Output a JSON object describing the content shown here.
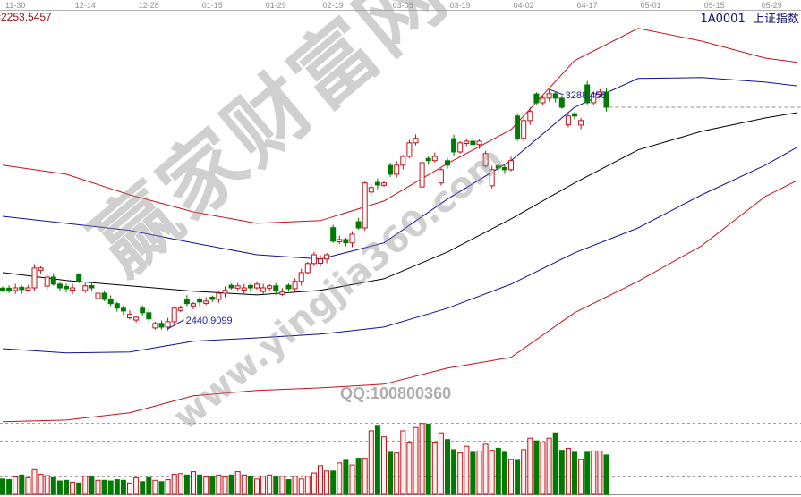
{
  "header": {
    "indicator_value": "=2253.5457",
    "security_code": "1A0001",
    "security_name": "上证指数"
  },
  "watermark": {
    "main": "赢家财富网",
    "url": "www.yingjia360.com",
    "qq": "QQ:100800360"
  },
  "colors": {
    "up": "#c0101a",
    "down": "#007a00",
    "upper_band": "#c8101a",
    "middle_band": "#10109a",
    "lower_band_outer": "#c8101a",
    "lower_band_inner": "#10109a",
    "moving_average": "#000000",
    "axis_text": "#909090"
  },
  "chart_data": [
    {
      "type": "candlestick",
      "title": "",
      "x_ticks": [
        {
          "index": 2,
          "label": "11-30"
        },
        {
          "index": 13,
          "label": "12-14"
        },
        {
          "index": 23,
          "label": "12-28"
        },
        {
          "index": 33,
          "label": "01-15"
        },
        {
          "index": 43,
          "label": "01-29"
        },
        {
          "index": 52,
          "label": "02-19"
        },
        {
          "index": 63,
          "label": "03-05"
        },
        {
          "index": 72,
          "label": "03-19"
        },
        {
          "index": 82,
          "label": "04-02"
        },
        {
          "index": 92,
          "label": "04-17"
        },
        {
          "index": 102,
          "label": "05-01"
        },
        {
          "index": 112,
          "label": "05-15"
        },
        {
          "index": 121,
          "label": "05-29"
        }
      ],
      "ylim": [
        2102,
        3535
      ],
      "close": [
        2577,
        2577,
        2586,
        2580,
        2586,
        2656,
        2656,
        2624,
        2599,
        2586,
        2583,
        2586,
        2609,
        2593,
        2586,
        2567,
        2545,
        2530,
        2514,
        2504,
        2492,
        2482,
        2498,
        2476,
        2460,
        2447,
        2466,
        2514,
        2514,
        2530,
        2530,
        2536,
        2539,
        2545,
        2567,
        2577,
        2586,
        2593,
        2586,
        2586,
        2599,
        2586,
        2593,
        2577,
        2571,
        2583,
        2609,
        2640,
        2672,
        2703,
        2688,
        2703,
        2751,
        2757,
        2745,
        2776,
        2798,
        2957,
        2941,
        2950,
        2957,
        2988,
        3020,
        3051,
        3099,
        3115,
        3029,
        3036,
        3051,
        3004,
        3020,
        3067,
        3099,
        3105,
        3093,
        3105,
        3061,
        3004,
        3010,
        3004,
        3036,
        3115,
        3178,
        3210,
        3241,
        3257,
        3273,
        3257,
        3225,
        3194,
        3194,
        3178,
        3241,
        3273,
        3279,
        3225
      ],
      "direction": "ggrgrrrrgggrgrgrggggrrggrgrrrgrgrgrrgrrgrrrgrgrrrrrrgrgrgrrgrgrrrrrgrrggrrgrrrggrgrrgrrggrgrgrrg",
      "annotations": [
        {
          "label": "3288.450",
          "index": 86,
          "value": 3288.45,
          "kind": "high"
        },
        {
          "label": "2440.9099",
          "index": 26,
          "value": 2440.9099,
          "kind": "low"
        }
      ],
      "last_close_line": 3225,
      "lines": [
        {
          "role": "upper_band",
          "points": [
            [
              0,
              3020
            ],
            [
              10,
              2988
            ],
            [
              20,
              2915
            ],
            [
              30,
              2855
            ],
            [
              40,
              2814
            ],
            [
              50,
              2824
            ],
            [
              60,
              2893
            ],
            [
              70,
              3026
            ],
            [
              80,
              3146
            ],
            [
              90,
              3390
            ],
            [
              100,
              3504
            ],
            [
              110,
              3459
            ],
            [
              120,
              3399
            ],
            [
              125,
              3384
            ]
          ]
        },
        {
          "role": "middle_band",
          "points": [
            [
              0,
              2839
            ],
            [
              10,
              2814
            ],
            [
              20,
              2789
            ],
            [
              30,
              2745
            ],
            [
              40,
              2703
            ],
            [
              50,
              2688
            ],
            [
              60,
              2745
            ],
            [
              70,
              2900
            ],
            [
              80,
              3036
            ],
            [
              90,
              3225
            ],
            [
              100,
              3327
            ],
            [
              110,
              3330
            ],
            [
              120,
              3314
            ],
            [
              125,
              3301
            ]
          ]
        },
        {
          "role": "moving_average",
          "points": [
            [
              0,
              2640
            ],
            [
              10,
              2612
            ],
            [
              20,
              2593
            ],
            [
              30,
              2574
            ],
            [
              40,
              2561
            ],
            [
              50,
              2577
            ],
            [
              60,
              2618
            ],
            [
              70,
              2713
            ],
            [
              80,
              2830
            ],
            [
              90,
              2957
            ],
            [
              100,
              3074
            ],
            [
              110,
              3140
            ],
            [
              120,
              3187
            ],
            [
              125,
              3206
            ]
          ]
        },
        {
          "role": "lower_band_inner",
          "points": [
            [
              0,
              2371
            ],
            [
              10,
              2356
            ],
            [
              20,
              2359
            ],
            [
              30,
              2397
            ],
            [
              40,
              2409
            ],
            [
              50,
              2422
            ],
            [
              60,
              2447
            ],
            [
              70,
              2514
            ],
            [
              80,
              2599
            ],
            [
              90,
              2710
            ],
            [
              100,
              2798
            ],
            [
              110,
              2915
            ],
            [
              120,
              3020
            ],
            [
              125,
              3083
            ]
          ]
        },
        {
          "role": "lower_band_outer",
          "points": [
            [
              0,
              2112
            ],
            [
              10,
              2118
            ],
            [
              20,
              2144
            ],
            [
              30,
              2204
            ],
            [
              40,
              2223
            ],
            [
              50,
              2232
            ],
            [
              60,
              2245
            ],
            [
              70,
              2302
            ],
            [
              80,
              2340
            ],
            [
              90,
              2498
            ],
            [
              100,
              2609
            ],
            [
              110,
              2735
            ],
            [
              120,
              2909
            ],
            [
              125,
              2966
            ]
          ]
        }
      ]
    },
    {
      "type": "bar",
      "title": "",
      "ylim": [
        0,
        107
      ],
      "grid": "dashed",
      "volume": [
        23,
        22,
        26,
        29,
        25,
        37,
        30,
        28,
        25,
        20,
        21,
        18,
        17,
        27,
        26,
        21,
        21,
        20,
        22,
        21,
        17,
        25,
        19,
        25,
        21,
        19,
        22,
        30,
        31,
        29,
        34,
        29,
        26,
        26,
        29,
        26,
        29,
        34,
        29,
        27,
        23,
        27,
        29,
        26,
        27,
        22,
        27,
        23,
        27,
        32,
        43,
        35,
        35,
        47,
        51,
        44,
        54,
        54,
        95,
        102,
        86,
        63,
        62,
        95,
        77,
        100,
        106,
        105,
        77,
        92,
        82,
        67,
        62,
        72,
        63,
        65,
        75,
        66,
        69,
        63,
        52,
        51,
        67,
        84,
        80,
        78,
        84,
        92,
        66,
        69,
        63,
        52,
        63,
        65,
        65,
        59
      ]
    }
  ]
}
